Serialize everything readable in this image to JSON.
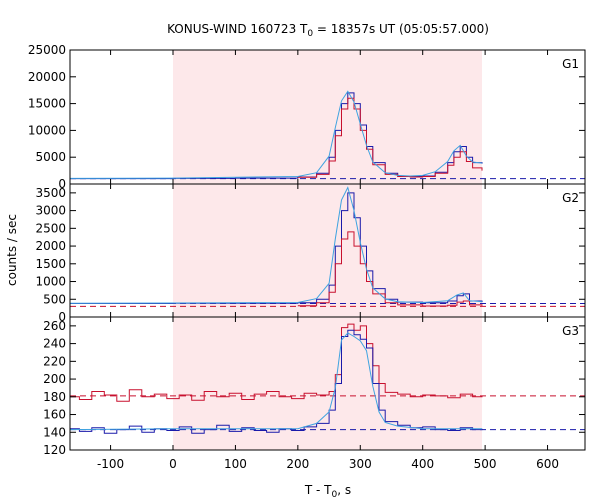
{
  "chart_data": {
    "type": "line",
    "title": "KONUS-WIND 160723 T",
    "title_sub": "0",
    "title_rest": " = 18357s UT (05:05:57.000)",
    "xlabel": "T - T",
    "xlabel_sub": "0",
    "xlabel_rest": ", s",
    "ylabel": "counts / sec",
    "xlim": [
      -165,
      660
    ],
    "xticks": [
      "-100",
      "0",
      "100",
      "200",
      "300",
      "400",
      "500",
      "600"
    ],
    "xtick_values": [
      -100,
      0,
      100,
      200,
      300,
      400,
      500,
      600
    ],
    "shaded_interval": [
      0,
      495
    ],
    "shade_color": "#fde8ea",
    "panels": [
      {
        "name": "G1",
        "ylim": [
          0,
          25000
        ],
        "yticks": [
          "0",
          "5000",
          "10000",
          "15000",
          "20000",
          "25000"
        ],
        "ytick_values": [
          0,
          5000,
          10000,
          15000,
          20000,
          25000
        ],
        "background_levels": [
          {
            "value": 1000,
            "color": "#1a1aaa"
          }
        ],
        "series": [
          {
            "color": "#1a1aaa",
            "style": "step",
            "x": [
              -165,
              -100,
              0,
              100,
              200,
              230,
              250,
              260,
              270,
              280,
              290,
              300,
              310,
              320,
              340,
              360,
              380,
              400,
              420,
              440,
              450,
              460,
              470,
              480,
              495
            ],
            "y": [
              1000,
              1000,
              1050,
              1100,
              1300,
              2000,
              5000,
              10000,
              15000,
              17000,
              15000,
              11000,
              7000,
              4000,
              2000,
              1500,
              1400,
              1500,
              2200,
              4000,
              6000,
              7000,
              5000,
              4000,
              3800
            ]
          },
          {
            "color": "#c8102e",
            "style": "step",
            "x": [
              200,
              230,
              250,
              260,
              270,
              280,
              290,
              300,
              310,
              320,
              340,
              360,
              380,
              400,
              420,
              440,
              450,
              460,
              470,
              480,
              495
            ],
            "y": [
              1250,
              1800,
              4300,
              9000,
              14000,
              16000,
              14000,
              10000,
              6500,
              3600,
              1800,
              1400,
              1300,
              1400,
              2000,
              3500,
              5000,
              6000,
              4200,
              3000,
              2500
            ]
          },
          {
            "color": "#3fa3e0",
            "style": "line",
            "x": [
              -165,
              0,
              200,
              230,
              250,
              260,
              270,
              280,
              290,
              300,
              310,
              320,
              340,
              360,
              380,
              400,
              420,
              440,
              450,
              460,
              470,
              480,
              495
            ],
            "y": [
              1050,
              1100,
              1400,
              2100,
              5200,
              10500,
              15500,
              17300,
              15300,
              11200,
              7200,
              4100,
              2100,
              1600,
              1500,
              1600,
              2300,
              4200,
              6200,
              7200,
              5200,
              4100,
              3900
            ]
          }
        ]
      },
      {
        "name": "G2",
        "ylim": [
          0,
          3750
        ],
        "yticks": [
          "0",
          "500",
          "1000",
          "1500",
          "2000",
          "2500",
          "3000",
          "3500"
        ],
        "ytick_values": [
          0,
          500,
          1000,
          1500,
          2000,
          2500,
          3000,
          3500
        ],
        "background_levels": [
          {
            "value": 380,
            "color": "#1a1aaa"
          },
          {
            "value": 300,
            "color": "#c8102e"
          }
        ],
        "series": [
          {
            "color": "#1a1aaa",
            "style": "step",
            "x": [
              -165,
              0,
              200,
              230,
              250,
              260,
              270,
              280,
              290,
              300,
              310,
              320,
              340,
              360,
              400,
              440,
              455,
              465,
              475,
              495
            ],
            "y": [
              380,
              385,
              400,
              500,
              900,
              2000,
              3000,
              3500,
              2800,
              2000,
              1300,
              800,
              500,
              420,
              400,
              450,
              600,
              650,
              450,
              420
            ]
          },
          {
            "color": "#c8102e",
            "style": "step",
            "x": [
              200,
              230,
              250,
              260,
              270,
              280,
              290,
              300,
              310,
              320,
              340,
              360,
              400,
              440,
              455,
              465,
              475,
              495
            ],
            "y": [
              320,
              400,
              700,
              1500,
              2200,
              2400,
              2000,
              1500,
              1000,
              650,
              400,
              340,
              310,
              330,
              420,
              450,
              340,
              320
            ]
          },
          {
            "color": "#3fa3e0",
            "style": "line",
            "x": [
              -165,
              0,
              200,
              230,
              250,
              260,
              270,
              280,
              290,
              300,
              310,
              320,
              340,
              360,
              400,
              440,
              455,
              465,
              475,
              495
            ],
            "y": [
              390,
              395,
              410,
              520,
              950,
              2200,
              3300,
              3650,
              3000,
              2100,
              1350,
              820,
              510,
              430,
              410,
              460,
              620,
              680,
              460,
              430
            ]
          }
        ]
      },
      {
        "name": "G3",
        "ylim": [
          120,
          270
        ],
        "yticks": [
          "120",
          "140",
          "160",
          "180",
          "200",
          "220",
          "240",
          "260"
        ],
        "ytick_values": [
          120,
          140,
          160,
          180,
          200,
          220,
          240,
          260
        ],
        "background_levels": [
          {
            "value": 181,
            "color": "#c8102e"
          },
          {
            "value": 143,
            "color": "#1a1aaa"
          }
        ],
        "series": [
          {
            "color": "#c8102e",
            "style": "step",
            "x": [
              -165,
              -150,
              -130,
              -110,
              -90,
              -70,
              -50,
              -30,
              -10,
              10,
              30,
              50,
              70,
              90,
              110,
              130,
              150,
              170,
              190,
              210,
              230,
              250,
              260,
              270,
              280,
              290,
              300,
              310,
              320,
              330,
              340,
              360,
              380,
              400,
              420,
              440,
              460,
              480,
              495
            ],
            "y": [
              180,
              177,
              186,
              182,
              175,
              188,
              180,
              183,
              178,
              182,
              176,
              186,
              180,
              184,
              177,
              183,
              186,
              180,
              178,
              184,
              182,
              186,
              205,
              258,
              262,
              255,
              260,
              240,
              215,
              195,
              185,
              183,
              180,
              182,
              181,
              179,
              183,
              180,
              181
            ]
          },
          {
            "color": "#1a1aaa",
            "style": "step",
            "x": [
              -165,
              -150,
              -130,
              -110,
              -90,
              -70,
              -50,
              -30,
              -10,
              10,
              30,
              50,
              70,
              90,
              110,
              130,
              150,
              170,
              190,
              210,
              230,
              250,
              260,
              270,
              280,
              290,
              300,
              310,
              320,
              330,
              340,
              360,
              380,
              400,
              420,
              440,
              460,
              480,
              495
            ],
            "y": [
              144,
              141,
              145,
              139,
              143,
              147,
              140,
              144,
              142,
              146,
              139,
              143,
              148,
              141,
              145,
              142,
              140,
              144,
              142,
              146,
              150,
              165,
              195,
              248,
              255,
              250,
              245,
              235,
              195,
              165,
              152,
              148,
              145,
              146,
              143,
              142,
              145,
              143,
              144
            ]
          },
          {
            "color": "#3fa3e0",
            "style": "line",
            "x": [
              -165,
              0,
              200,
              230,
              250,
              260,
              270,
              280,
              290,
              300,
              310,
              320,
              330,
              340,
              360,
              400,
              495
            ],
            "y": [
              143,
              144,
              144,
              150,
              163,
              190,
              244,
              252,
              248,
              243,
              232,
              192,
              163,
              151,
              147,
              144,
              144
            ]
          }
        ]
      }
    ]
  }
}
